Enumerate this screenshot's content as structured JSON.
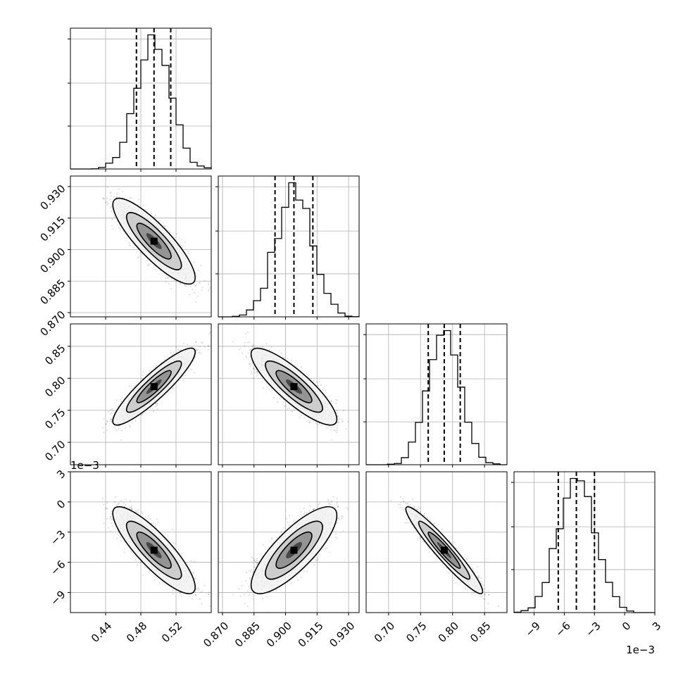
{
  "chart_data": {
    "type": "corner",
    "parameters": [
      {
        "index": 0,
        "range": [
          0.4,
          0.56
        ],
        "mean": 0.495,
        "sd": 0.0195,
        "quantiles": [
          0.475,
          0.495,
          0.514
        ],
        "ticks": [
          0.44,
          0.48,
          0.52
        ],
        "tick_labels": [
          "0.44",
          "0.48",
          "0.52"
        ],
        "offset_text": ""
      },
      {
        "index": 1,
        "range": [
          0.868,
          0.935
        ],
        "mean": 0.904,
        "sd": 0.0085,
        "quantiles": [
          0.895,
          0.904,
          0.913
        ],
        "ticks": [
          0.87,
          0.885,
          0.9,
          0.915,
          0.93
        ],
        "tick_labels": [
          "0.870",
          "0.885",
          "0.900",
          "0.915",
          "0.930"
        ],
        "offset_text": ""
      },
      {
        "index": 2,
        "range": [
          0.665,
          0.885
        ],
        "mean": 0.787,
        "sd": 0.025,
        "quantiles": [
          0.762,
          0.787,
          0.812
        ],
        "ticks": [
          0.7,
          0.75,
          0.8,
          0.85
        ],
        "tick_labels": [
          "0.70",
          "0.75",
          "0.80",
          "0.85"
        ],
        "offset_text": ""
      },
      {
        "index": 3,
        "range": [
          -0.011,
          0.003
        ],
        "mean": -0.0048,
        "sd": 0.0018,
        "quantiles": [
          -0.0066,
          -0.0048,
          -0.003
        ],
        "ticks": [
          -0.009,
          -0.006,
          -0.003,
          0.0,
          0.003
        ],
        "tick_labels": [
          "−9",
          "−6",
          "−3",
          "0",
          "3"
        ],
        "offset_text": "1e−3"
      }
    ],
    "correlations": [
      {
        "pair": [
          0,
          1
        ],
        "r": -0.85
      },
      {
        "pair": [
          0,
          2
        ],
        "r": 0.9
      },
      {
        "pair": [
          1,
          2
        ],
        "r": -0.85
      },
      {
        "pair": [
          0,
          3
        ],
        "r": -0.85
      },
      {
        "pair": [
          1,
          3
        ],
        "r": 0.8
      },
      {
        "pair": [
          2,
          3
        ],
        "r": -0.95
      }
    ],
    "grid": true,
    "histogram_style": "step",
    "quantile_lines": "dashed",
    "contour_style": "black filled density contours with scatter points"
  }
}
